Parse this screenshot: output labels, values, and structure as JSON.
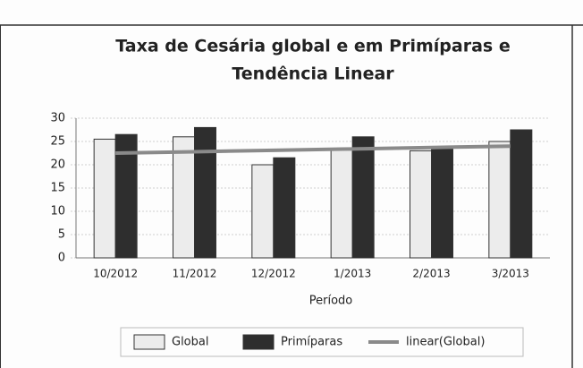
{
  "chart_data": {
    "type": "bar",
    "title": "Taxa de Cesária global e em Primíparas e",
    "title_line2": "Tendência Linear",
    "x_label": "Período",
    "categories": [
      "10/2012",
      "11/2012",
      "12/2012",
      "1/2013",
      "2/2013",
      "3/2013"
    ],
    "series": [
      {
        "name": "Global",
        "color": "#ececec",
        "values": [
          25.5,
          26,
          20,
          23.5,
          23,
          25
        ]
      },
      {
        "name": "Primíparas",
        "color": "#2e2e2e",
        "values": [
          26.5,
          28,
          21.5,
          26,
          23.5,
          27.5
        ]
      },
      {
        "name": "linear(Global)",
        "color": "#8a8a8a",
        "type": "line",
        "values": [
          22.5,
          22.8,
          23.1,
          23.4,
          23.7,
          24
        ]
      }
    ],
    "ylim": [
      0,
      30
    ],
    "yticks": [
      0,
      5,
      10,
      15,
      20,
      25,
      30
    ],
    "grid": true,
    "legend": "bottom"
  }
}
